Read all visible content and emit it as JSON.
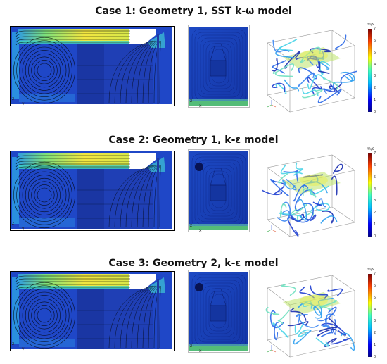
{
  "cases": [
    {
      "title": "Case 1: Geometry 1, SST k-ω model",
      "axes_side": [
        "z",
        "y"
      ],
      "axes_front": [
        "z",
        "x"
      ],
      "colorbar": {
        "unit": "m/s",
        "ticks": [
          "0",
          "1",
          "2",
          "3",
          "4",
          "5",
          "6",
          "7"
        ]
      }
    },
    {
      "title": "Case 2: Geometry 1, k-ε model",
      "axes_side": [
        "z",
        "y"
      ],
      "axes_front": [
        "z",
        "x"
      ],
      "colorbar": {
        "unit": "m/s",
        "ticks": [
          "0",
          "1",
          "2",
          "3",
          "4",
          "5",
          "6",
          "7"
        ]
      }
    },
    {
      "title": "Case 3: Geometry 2, k-ε model",
      "axes_side": [
        "z",
        "y"
      ],
      "axes_front": [
        "z",
        "x"
      ],
      "colorbar": {
        "unit": "m/s",
        "ticks": [
          "0",
          "1",
          "2",
          "3",
          "4",
          "5",
          "6",
          "7"
        ]
      }
    }
  ]
}
